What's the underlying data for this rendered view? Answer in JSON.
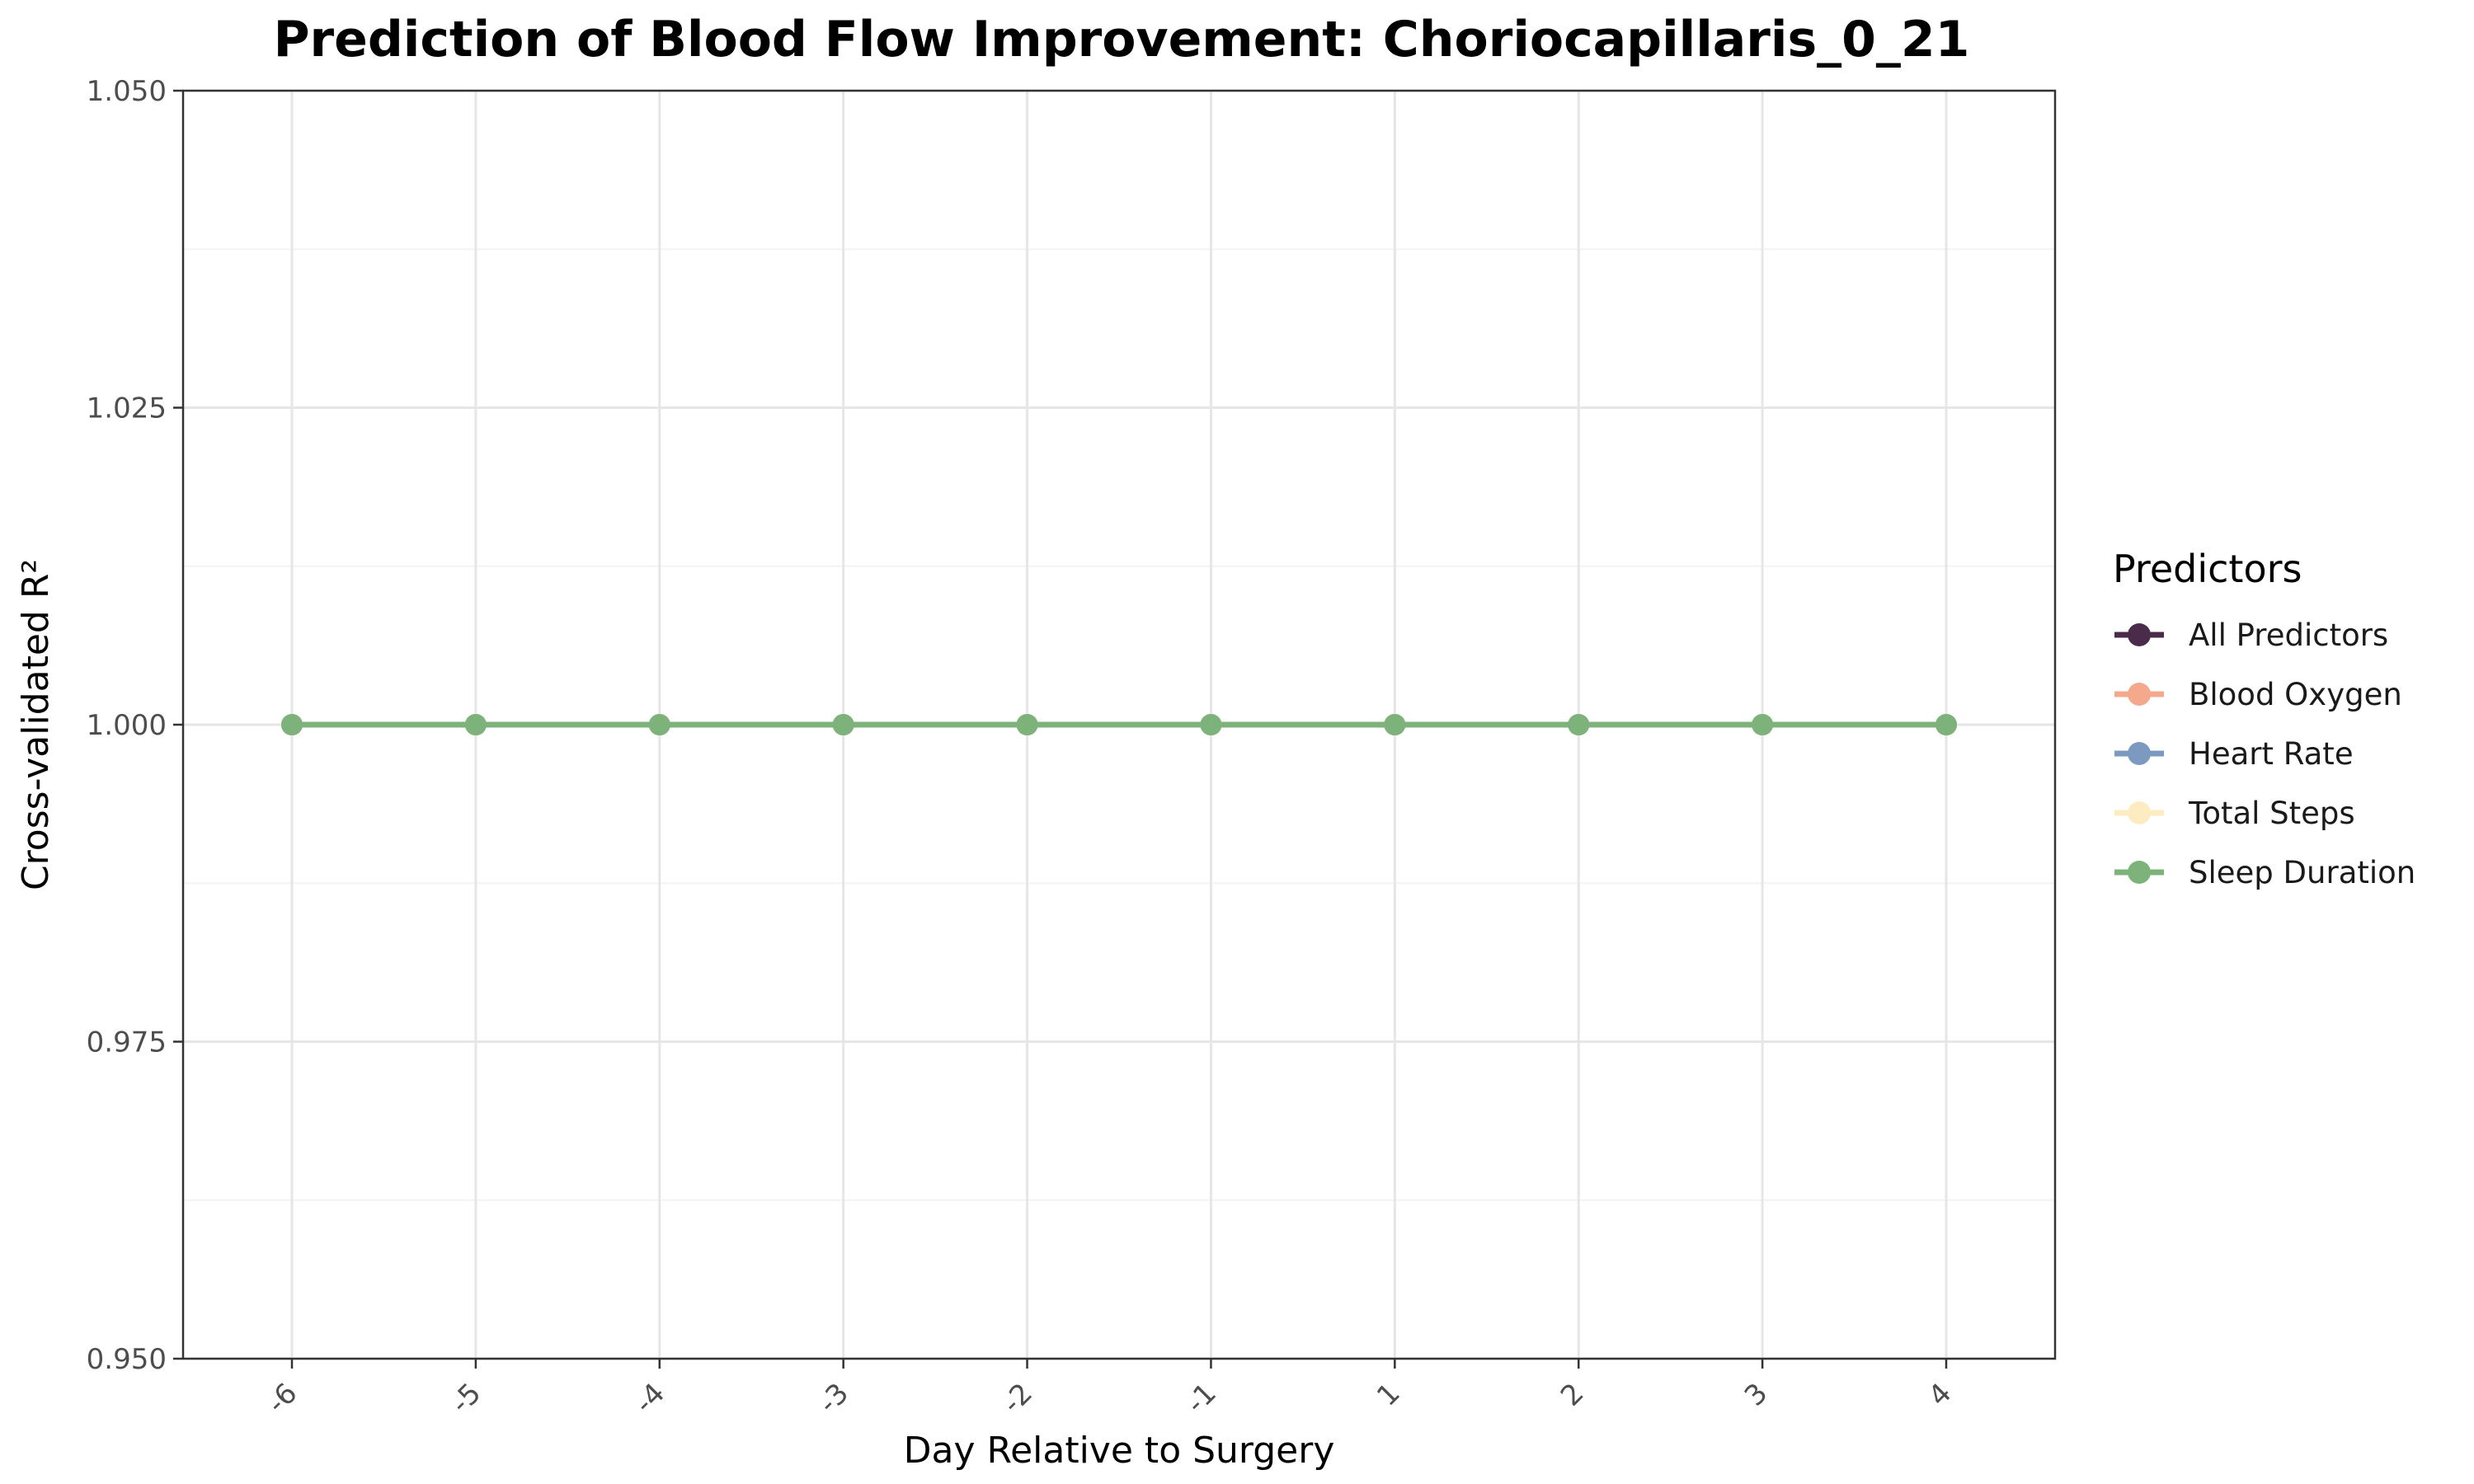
{
  "chart_data": {
    "type": "line",
    "title": "Prediction of Blood Flow Improvement: Choriocapillaris_0_21",
    "xlabel": "Day Relative to Surgery",
    "ylabel": "Cross-validated R²",
    "x": [
      -6,
      -5,
      -4,
      -3,
      -2,
      -1,
      1,
      2,
      3,
      4
    ],
    "x_tick_labels": [
      "-6",
      "-5",
      "-4",
      "-3",
      "-2",
      "-1",
      "1",
      "2",
      "3",
      "4"
    ],
    "ylim": [
      0.95,
      1.05
    ],
    "y_ticks": [
      0.95,
      0.975,
      1.0,
      1.025,
      1.05
    ],
    "y_tick_labels": [
      "0.950",
      "0.975",
      "1.000",
      "1.025",
      "1.050"
    ],
    "grid": true,
    "legend": {
      "title": "Predictors",
      "placement": "right"
    },
    "series": [
      {
        "name": "All Predictors",
        "color": "#4a2c4a",
        "values": [
          1,
          1,
          1,
          1,
          1,
          1,
          1,
          1,
          1,
          1
        ]
      },
      {
        "name": "Blood Oxygen",
        "color": "#f4a98c",
        "values": [
          1,
          1,
          1,
          1,
          1,
          1,
          1,
          1,
          1,
          1
        ]
      },
      {
        "name": "Heart Rate",
        "color": "#7c9abf",
        "values": [
          1,
          1,
          1,
          1,
          1,
          1,
          1,
          1,
          1,
          1
        ]
      },
      {
        "name": "Total Steps",
        "color": "#fdebc2",
        "values": [
          1,
          1,
          1,
          1,
          1,
          1,
          1,
          1,
          1,
          1
        ]
      },
      {
        "name": "Sleep Duration",
        "color": "#7db37a",
        "values": [
          1,
          1,
          1,
          1,
          1,
          1,
          1,
          1,
          1,
          1
        ]
      }
    ]
  }
}
